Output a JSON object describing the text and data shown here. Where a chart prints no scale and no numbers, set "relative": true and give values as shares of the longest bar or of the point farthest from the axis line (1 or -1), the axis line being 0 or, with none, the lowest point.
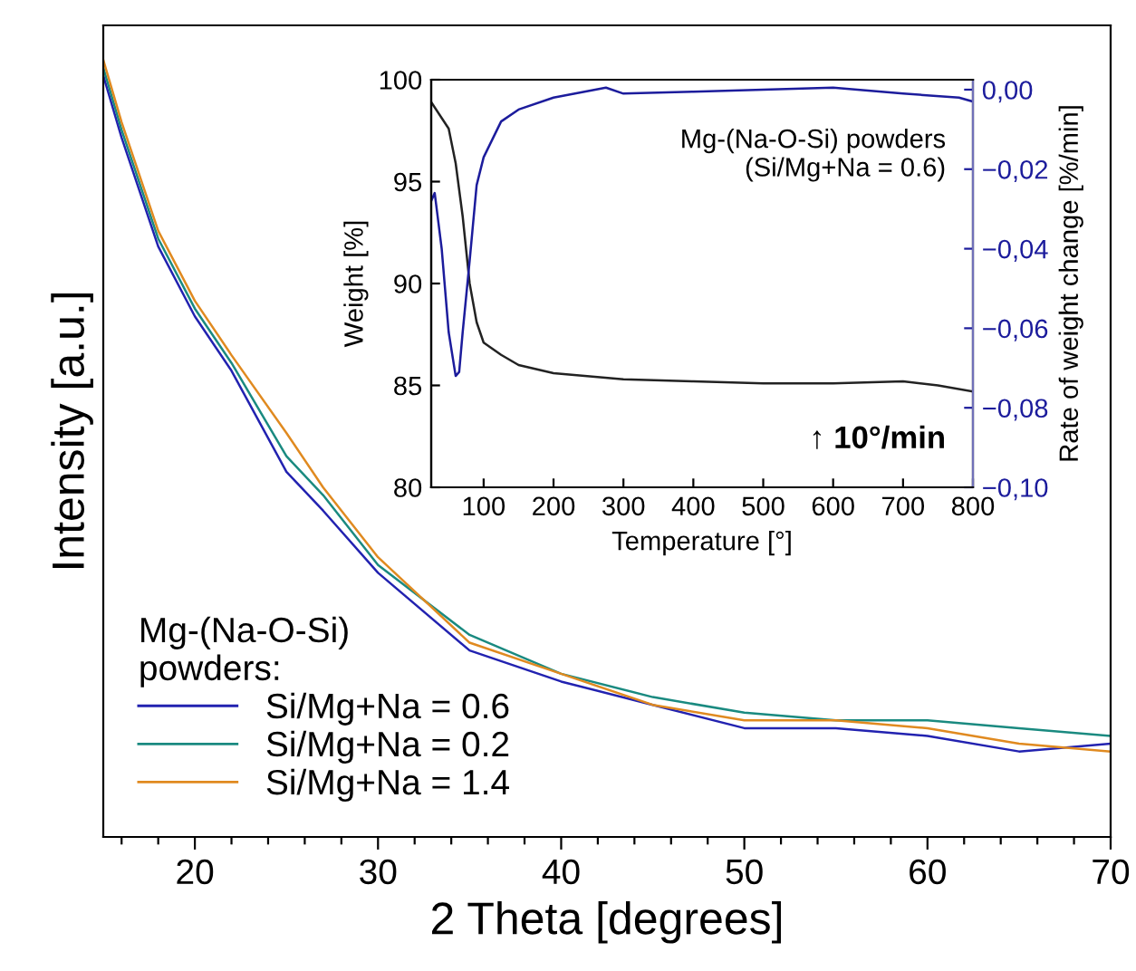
{
  "chart_data": [
    {
      "type": "line",
      "relative": true,
      "xlabel": "2 Theta [degrees]",
      "ylabel": "Intensity [a.u.]",
      "legend_title": "Mg-(Na-O-Si)\npowders:",
      "legend": "bottom left",
      "grid": false,
      "marker": "none",
      "x": [
        15,
        16,
        18,
        20,
        22,
        25,
        27,
        30,
        35,
        40,
        45,
        50,
        55,
        60,
        65,
        70
      ],
      "xlim": [
        15,
        70
      ],
      "xticks": [
        {
          "value": 16,
          "label": null
        },
        {
          "value": 18,
          "label": null
        },
        20,
        {
          "value": 22,
          "label": null
        },
        {
          "value": 24,
          "label": null
        },
        {
          "value": 26,
          "label": null
        },
        {
          "value": 28,
          "label": null
        },
        30,
        {
          "value": 32,
          "label": null
        },
        {
          "value": 34,
          "label": null
        },
        {
          "value": 36,
          "label": null
        },
        {
          "value": 38,
          "label": null
        },
        40,
        {
          "value": 42,
          "label": null
        },
        {
          "value": 44,
          "label": null
        },
        {
          "value": 46,
          "label": null
        },
        {
          "value": 48,
          "label": null
        },
        50,
        {
          "value": 52,
          "label": null
        },
        {
          "value": 54,
          "label": null
        },
        {
          "value": 56,
          "label": null
        },
        {
          "value": 58,
          "label": null
        },
        60,
        {
          "value": 62,
          "label": null
        },
        {
          "value": 64,
          "label": null
        },
        {
          "value": 66,
          "label": null
        },
        {
          "value": 68,
          "label": null
        },
        70
      ],
      "series": [
        {
          "name": "Si/Mg+Na = 0.6",
          "color": "#2222b0",
          "values": [
            0.98,
            0.9,
            0.76,
            0.67,
            0.6,
            0.47,
            0.42,
            0.34,
            0.24,
            0.2,
            0.17,
            0.14,
            0.14,
            0.13,
            0.11,
            0.12
          ]
        },
        {
          "name": "Si/Mg+Na = 0.2",
          "color": "#1a8a80",
          "values": [
            0.99,
            0.91,
            0.77,
            0.68,
            0.61,
            0.49,
            0.44,
            0.35,
            0.26,
            0.21,
            0.18,
            0.16,
            0.15,
            0.15,
            0.14,
            0.13
          ]
        },
        {
          "name": "Si/Mg+Na = 1.4",
          "color": "#e08a20",
          "values": [
            1.0,
            0.92,
            0.78,
            0.69,
            0.62,
            0.52,
            0.45,
            0.36,
            0.25,
            0.21,
            0.17,
            0.15,
            0.15,
            0.14,
            0.12,
            0.11
          ]
        }
      ]
    },
    {
      "type": "line",
      "xlabel": "Temperature [°]",
      "ylabel": "Weight [%]",
      "y2label": "Rate of weight change [%/min]",
      "grid": false,
      "marker": "none",
      "annotations": [
        "Mg-(Na-O-Si) powders\n(Si/Mg+Na = 0.6)",
        "↑ 10°/min"
      ],
      "xlim": [
        25,
        800
      ],
      "xticks": [
        100,
        200,
        300,
        400,
        500,
        600,
        700,
        800
      ],
      "ylim": [
        80,
        100
      ],
      "yticks": [
        80,
        85,
        90,
        95,
        100
      ],
      "y2lim": [
        -0.1,
        0.0025
      ],
      "y2ticks": [
        {
          "value": 0,
          "label": "0,00"
        },
        {
          "value": -0.02,
          "label": "−0,02"
        },
        {
          "value": -0.04,
          "label": "−0,04"
        },
        {
          "value": -0.06,
          "label": "−0,06"
        },
        {
          "value": -0.08,
          "label": "−0,08"
        },
        {
          "value": -0.1,
          "label": "−0,10"
        }
      ],
      "series": [
        {
          "color": "#222222",
          "x": [
            25,
            50,
            60,
            70,
            80,
            90,
            100,
            125,
            150,
            200,
            300,
            400,
            500,
            600,
            700,
            750,
            800
          ],
          "values": [
            98.9,
            97.6,
            95.9,
            93.3,
            90.0,
            88.1,
            87.1,
            86.5,
            86.0,
            85.6,
            85.3,
            85.2,
            85.1,
            85.1,
            85.2,
            85.0,
            84.7
          ]
        },
        {
          "color": "#1c1c9c",
          "axis": "y2",
          "x": [
            25,
            30,
            40,
            50,
            60,
            65,
            70,
            80,
            90,
            100,
            125,
            150,
            200,
            275,
            300,
            400,
            500,
            600,
            700,
            780,
            800
          ],
          "values": [
            -0.028,
            -0.026,
            -0.04,
            -0.061,
            -0.072,
            -0.071,
            -0.061,
            -0.043,
            -0.024,
            -0.017,
            -0.008,
            -0.005,
            -0.002,
            0.0005,
            -0.001,
            -0.0005,
            0,
            0.0005,
            -0.001,
            -0.002,
            -0.003
          ]
        }
      ]
    }
  ]
}
